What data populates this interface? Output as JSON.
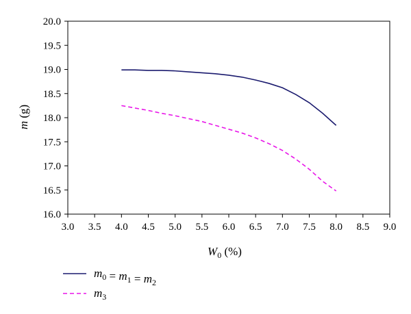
{
  "chart_data": {
    "type": "line",
    "title": "",
    "xlabel": {
      "main": "W",
      "sub": "0",
      "rest": " (%)"
    },
    "ylabel": {
      "italic": "m",
      "rest": " (g)"
    },
    "xlim": [
      3.0,
      9.0
    ],
    "ylim": [
      16.0,
      20.0
    ],
    "xticks": [
      "3.0",
      "3.5",
      "4.0",
      "4.5",
      "5.0",
      "5.5",
      "6.0",
      "6.5",
      "7.0",
      "7.5",
      "8.0",
      "8.5",
      "9.0"
    ],
    "yticks": [
      "16.0",
      "16.5",
      "17.0",
      "17.5",
      "18.0",
      "18.5",
      "19.0",
      "19.5",
      "20.0"
    ],
    "grid": false,
    "legend_placement": "bottom-left",
    "series": [
      {
        "name": "m0 = m1 = m2",
        "legend": [
          {
            "t": "m",
            "sub": "0"
          },
          {
            "t": " = "
          },
          {
            "t": "m",
            "sub": "1"
          },
          {
            "t": " = "
          },
          {
            "t": "m",
            "sub": "2"
          }
        ],
        "color": "#1a1a6e",
        "dash": "solid",
        "x": [
          4.0,
          4.25,
          4.5,
          4.75,
          5.0,
          5.25,
          5.5,
          5.75,
          6.0,
          6.25,
          6.5,
          6.75,
          7.0,
          7.25,
          7.5,
          7.75,
          8.0
        ],
        "y": [
          18.99,
          18.99,
          18.98,
          18.98,
          18.97,
          18.95,
          18.93,
          18.91,
          18.88,
          18.84,
          18.78,
          18.71,
          18.62,
          18.48,
          18.31,
          18.09,
          17.84
        ]
      },
      {
        "name": "m3",
        "legend": [
          {
            "t": "m",
            "sub": "3"
          }
        ],
        "color": "#e815e8",
        "dash": "dashed",
        "x": [
          4.0,
          4.25,
          4.5,
          4.75,
          5.0,
          5.25,
          5.5,
          5.75,
          6.0,
          6.25,
          6.5,
          6.75,
          7.0,
          7.25,
          7.5,
          7.75,
          8.0
        ],
        "y": [
          18.25,
          18.2,
          18.15,
          18.09,
          18.04,
          17.98,
          17.92,
          17.84,
          17.76,
          17.68,
          17.58,
          17.46,
          17.32,
          17.14,
          16.93,
          16.68,
          16.48
        ]
      }
    ]
  }
}
